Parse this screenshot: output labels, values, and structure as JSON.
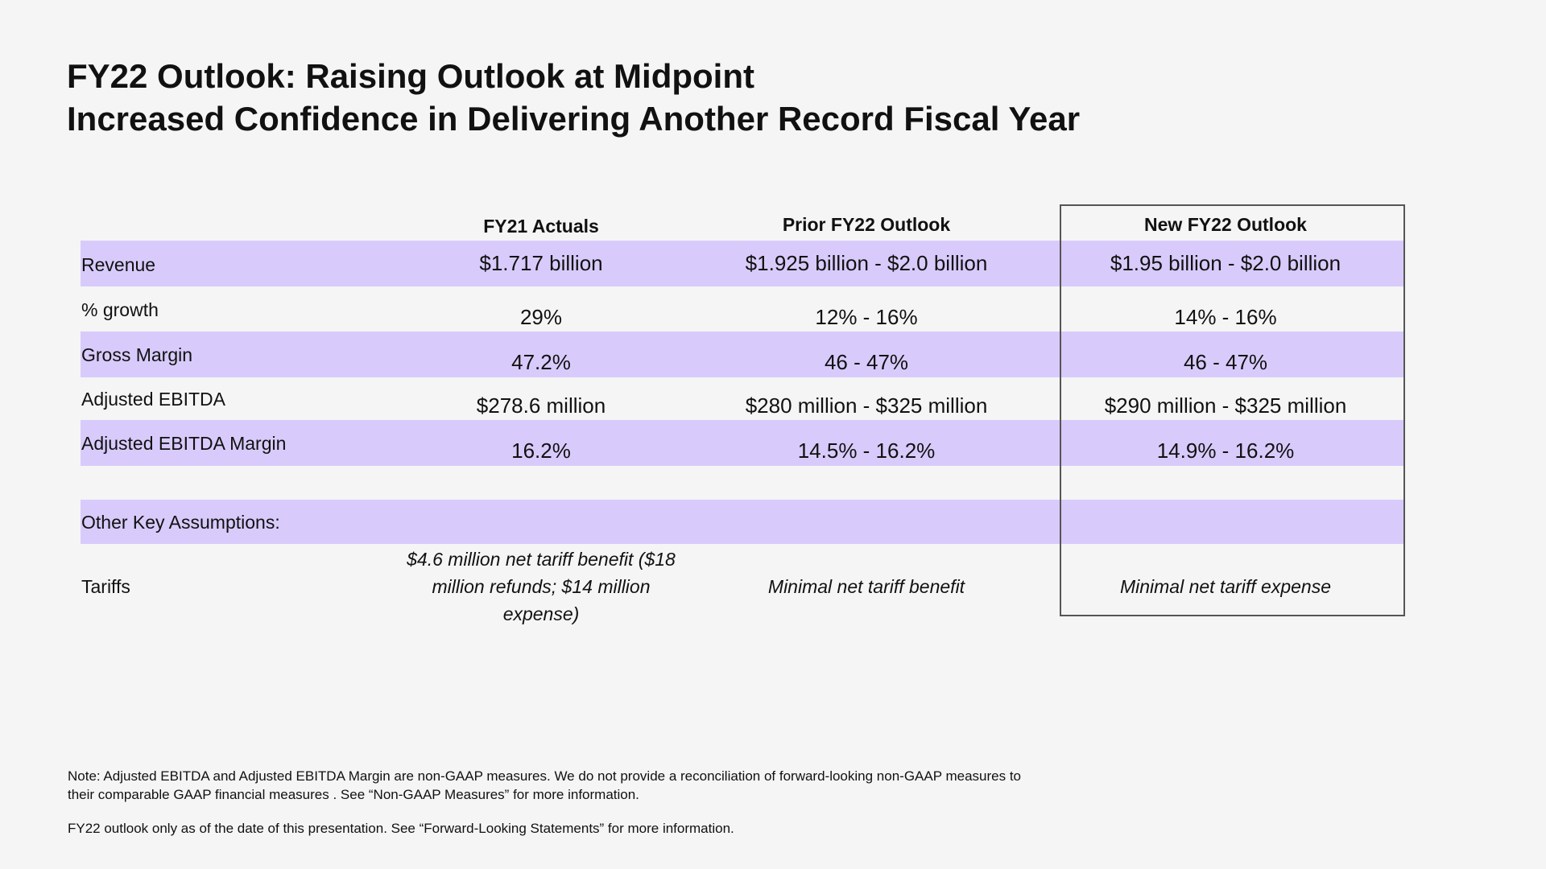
{
  "title": {
    "line1": "FY22 Outlook: Raising Outlook at Midpoint",
    "line2": "Increased Confidence in Delivering Another Record Fiscal Year"
  },
  "table": {
    "columns": [
      "FY21 Actuals",
      "Prior FY22 Outlook",
      "New FY22 Outlook"
    ],
    "rows": [
      {
        "label": "Revenue",
        "values": [
          "$1.717 billion",
          "$1.925 billion - $2.0 billion",
          "$1.95 billion - $2.0 billion"
        ]
      },
      {
        "label": "% growth",
        "values": [
          "29%",
          "12% - 16%",
          "14% - 16%"
        ]
      },
      {
        "label": "Gross Margin",
        "values": [
          "47.2%",
          "46 - 47%",
          "46 - 47%"
        ]
      },
      {
        "label": "Adjusted EBITDA",
        "values": [
          "$278.6 million",
          "$280 million - $325 million",
          "$290 million - $325 million"
        ]
      },
      {
        "label": "Adjusted EBITDA Margin",
        "values": [
          "16.2%",
          "14.5% - 16.2%",
          "14.9% - 16.2%"
        ]
      }
    ],
    "other_key_assumptions_label": "Other Key Assumptions:",
    "tariffs": {
      "label": "Tariffs",
      "fy21": "$4.6 million net tariff benefit ($18 million refunds; $14 million expense)",
      "prior": "Minimal net tariff benefit",
      "new": "Minimal net tariff expense"
    }
  },
  "notes": {
    "note1": "Note: Adjusted EBITDA and Adjusted EBITDA Margin are non-GAAP measures.  We do not provide a reconciliation of forward-looking non-GAAP measures to their comparable GAAP financial measures . See “Non-GAAP Measures” for more information.",
    "note2": "FY22 outlook only as of the date of this presentation.  See “Forward-Looking Statements” for more information."
  }
}
